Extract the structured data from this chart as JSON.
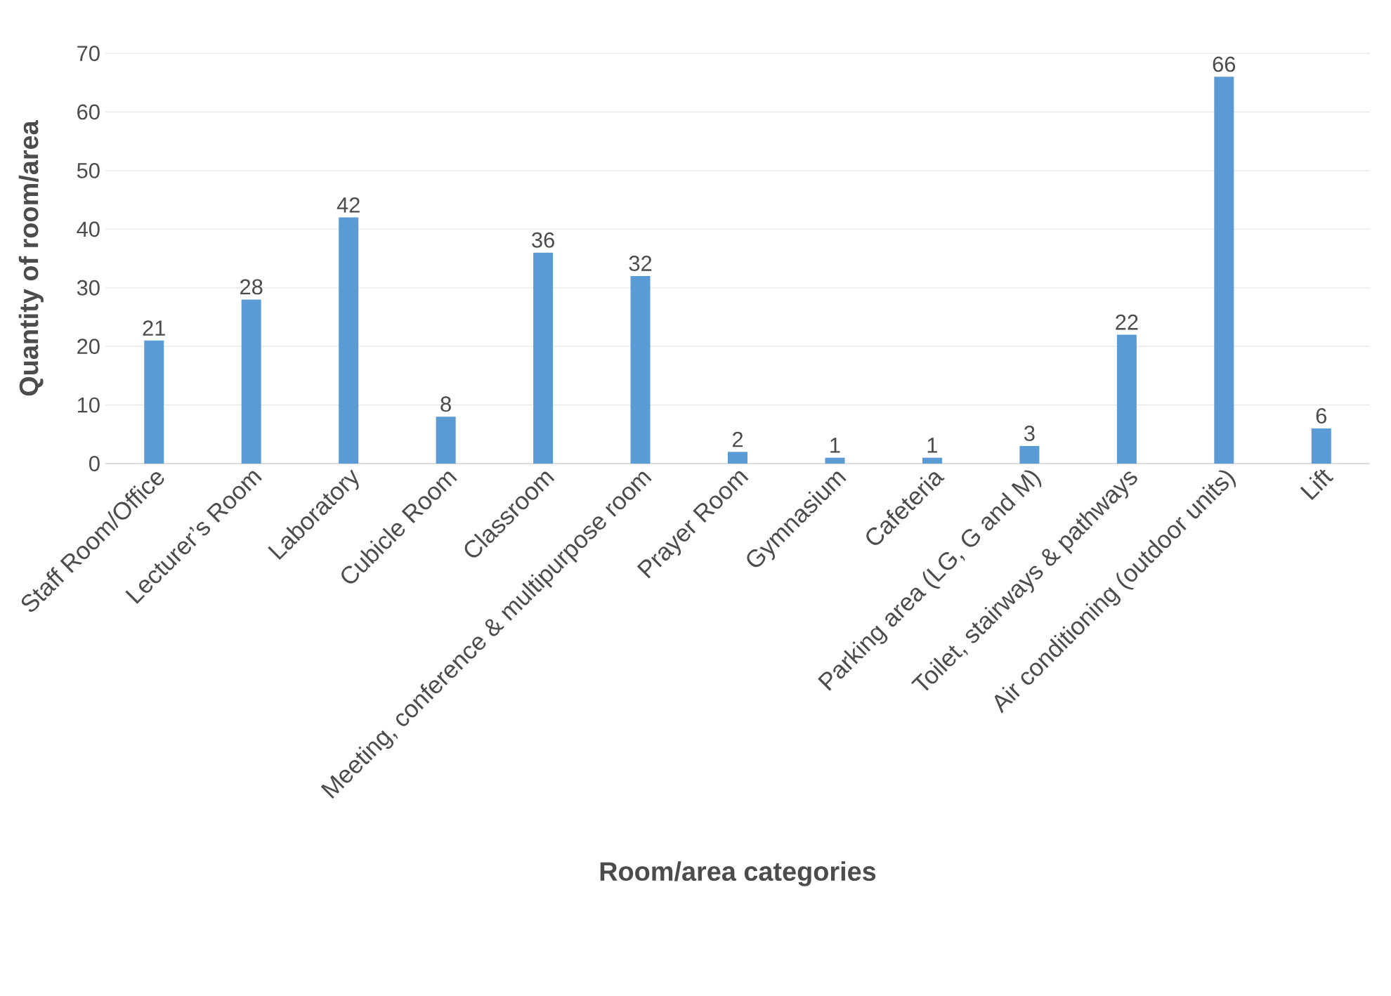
{
  "chart_data": {
    "type": "bar",
    "xlabel": "Room/area categories",
    "ylabel": "Quantity of room/area",
    "categories": [
      "Staff Room/Office",
      "Lecturer’s Room",
      "Laboratory",
      "Cubicle Room",
      "Classroom",
      "Meeting, conference & multipurpose room",
      "Prayer Room",
      "Gymnasium",
      "Cafeteria",
      "Parking area (LG, G and M)",
      "Toilet, stairways & pathways",
      "Air conditioning (outdoor units)",
      "Lift"
    ],
    "values": [
      21,
      28,
      42,
      8,
      36,
      32,
      2,
      1,
      1,
      3,
      22,
      66,
      6
    ],
    "color": "#5b9bd5",
    "ylim": [
      0,
      70
    ],
    "yticks": [
      0,
      10,
      20,
      30,
      40,
      50,
      60,
      70
    ],
    "grid": "y",
    "data_labels": true
  }
}
